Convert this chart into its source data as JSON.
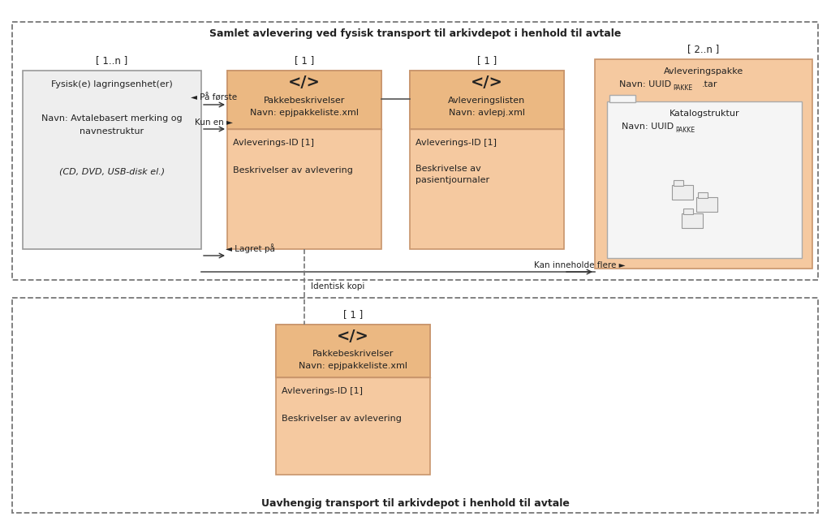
{
  "bg_color": "#ffffff",
  "box_orange_fill": "#f5c9a0",
  "box_orange_header": "#ebb882",
  "box_orange_border": "#c8956c",
  "box_white_fill": "#eeeeee",
  "box_white_border": "#999999",
  "box_catalog_fill": "#f5f5f5",
  "box_catalog_border": "#aaaaaa",
  "text_color": "#222222",
  "dash_color": "#777777",
  "arrow_color": "#333333",
  "title_top": "Samlet avlevering ved fysisk transport til arkivdepot i henhold til avtale",
  "title_bottom": "Uavhengig transport til arkivdepot i henhold til avtale",
  "label_11n": "[ 1..n ]",
  "label_1a": "[ 1 ]",
  "label_1b": "[ 1 ]",
  "label_2n": "[ 2..n ]",
  "label_1c": "[ 1 ]",
  "box1_line1": "Fysisk(e) lagringsenhet(er)",
  "box1_line2": "Navn: Avtalebasert merking og",
  "box1_line3": "navnestruktur",
  "box1_line4": "(CD, DVD, USB-disk el.)",
  "box2_hdr": "</>",
  "box2_t1": "Pakkebeskrivelser",
  "box2_t2": "Navn: epjpakkeliste.xml",
  "box2_a1": "Avleverings-ID [1]",
  "box2_a2": "Beskrivelser av avlevering",
  "box3_hdr": "</>",
  "box3_t1": "Avleveringslisten",
  "box3_t2": "Navn: avlepj.xml",
  "box3_a1": "Avleverings-ID [1]",
  "box3_a2": "Beskrivelse av",
  "box3_a3": "pasientjournaler",
  "box4_t1": "Avleveringspakke",
  "box4_cat": "Katalogstruktur",
  "box5_hdr": "</>",
  "box5_t1": "Pakkebeskrivelser",
  "box5_t2": "Navn: epjpakkeliste.xml",
  "box5_a1": "Avleverings-ID [1]",
  "box5_a2": "Beskrivelser av avlevering",
  "arr1": "◄ På første",
  "arr2": "Kun en ►",
  "arr3": "◄ Lagret på",
  "arr4": "Kan inneholde flere ►",
  "arr5": "Identisk kopi"
}
